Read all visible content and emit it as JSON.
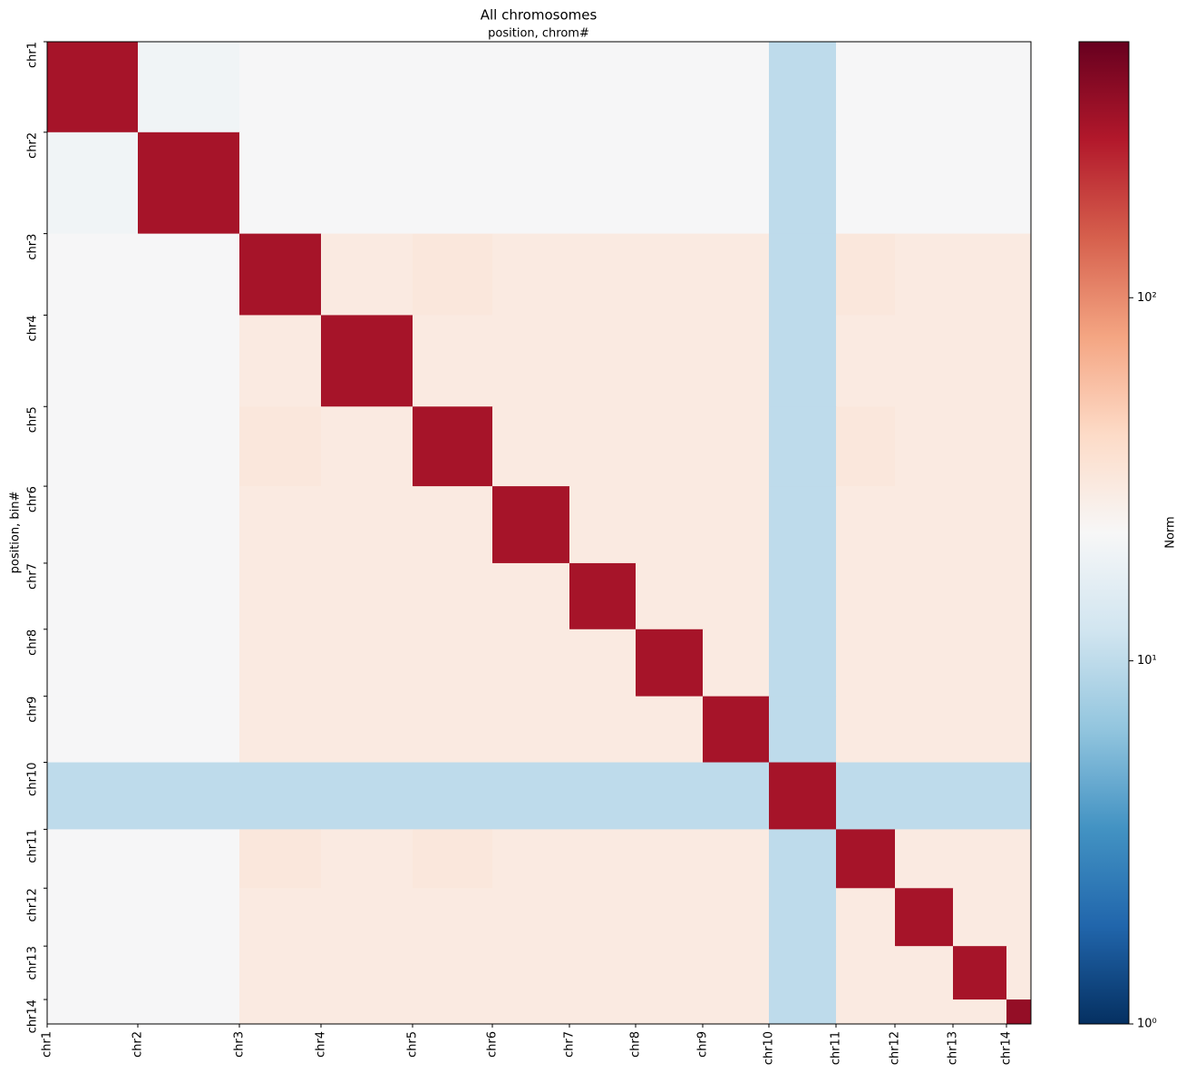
{
  "chart_data": {
    "type": "heatmap",
    "title": "All chromosomes",
    "xlabel": "position, chrom#",
    "ylabel": "position, bin#",
    "colorbar_label": "Norm",
    "colormap": "RdBu_r",
    "log_color": true,
    "clim": [
      1,
      507
    ],
    "cticks": [
      {
        "value": 1,
        "label": "10⁰"
      },
      {
        "value": 10,
        "label": "10¹"
      },
      {
        "value": 100,
        "label": "10²"
      }
    ],
    "xlim": [
      0,
      1085
    ],
    "ylim": [
      1085,
      0
    ],
    "xticks": [
      {
        "value": 0,
        "label": "chr1"
      },
      {
        "value": 100,
        "label": "chr2"
      },
      {
        "value": 212,
        "label": "chr3"
      },
      {
        "value": 302,
        "label": "chr4"
      },
      {
        "value": 403,
        "label": "chr5"
      },
      {
        "value": 491,
        "label": "chr6"
      },
      {
        "value": 576,
        "label": "chr7"
      },
      {
        "value": 649,
        "label": "chr8"
      },
      {
        "value": 723,
        "label": "chr9"
      },
      {
        "value": 796,
        "label": "chr10"
      },
      {
        "value": 870,
        "label": "chr11"
      },
      {
        "value": 935,
        "label": "chr12"
      },
      {
        "value": 999,
        "label": "chr13"
      },
      {
        "value": 1058,
        "label": "chr14"
      }
    ],
    "yticks": [
      {
        "value": 0,
        "label": "chr1"
      },
      {
        "value": 100,
        "label": "chr2"
      },
      {
        "value": 212,
        "label": "chr3"
      },
      {
        "value": 302,
        "label": "chr4"
      },
      {
        "value": 403,
        "label": "chr5"
      },
      {
        "value": 491,
        "label": "chr6"
      },
      {
        "value": 576,
        "label": "chr7"
      },
      {
        "value": 649,
        "label": "chr8"
      },
      {
        "value": 723,
        "label": "chr9"
      },
      {
        "value": 796,
        "label": "chr10"
      },
      {
        "value": 870,
        "label": "chr11"
      },
      {
        "value": 935,
        "label": "chr12"
      },
      {
        "value": 999,
        "label": "chr13"
      },
      {
        "value": 1058,
        "label": "chr14"
      }
    ],
    "matrix": [
      [
        300,
        20,
        22,
        22,
        22,
        22,
        22,
        22,
        22,
        10,
        22,
        22,
        22,
        22
      ],
      [
        20,
        300,
        22,
        22,
        22,
        22,
        22,
        22,
        22,
        10,
        22,
        22,
        22,
        22
      ],
      [
        22,
        22,
        300,
        30,
        32,
        30,
        30,
        30,
        30,
        10,
        32,
        30,
        30,
        30
      ],
      [
        22,
        22,
        30,
        300,
        30,
        30,
        30,
        30,
        30,
        10,
        30,
        30,
        30,
        30
      ],
      [
        22,
        22,
        32,
        30,
        300,
        30,
        30,
        30,
        30,
        10,
        32,
        30,
        30,
        30
      ],
      [
        22,
        22,
        30,
        30,
        30,
        300,
        30,
        30,
        30,
        10,
        30,
        30,
        30,
        30
      ],
      [
        22,
        22,
        30,
        30,
        30,
        30,
        300,
        30,
        30,
        10,
        30,
        30,
        30,
        30
      ],
      [
        22,
        22,
        30,
        30,
        30,
        30,
        30,
        300,
        30,
        10,
        30,
        30,
        30,
        30
      ],
      [
        22,
        22,
        30,
        30,
        30,
        30,
        30,
        30,
        300,
        10,
        30,
        30,
        30,
        30
      ],
      [
        10,
        10,
        10,
        10,
        10,
        10,
        10,
        10,
        10,
        300,
        10,
        10,
        10,
        10
      ],
      [
        22,
        22,
        32,
        30,
        32,
        30,
        30,
        30,
        30,
        10,
        300,
        30,
        30,
        30
      ],
      [
        22,
        22,
        30,
        30,
        30,
        30,
        30,
        30,
        30,
        10,
        30,
        300,
        30,
        30
      ],
      [
        22,
        22,
        30,
        30,
        30,
        30,
        30,
        30,
        30,
        10,
        30,
        30,
        300,
        30
      ],
      [
        22,
        22,
        30,
        30,
        30,
        30,
        30,
        30,
        30,
        10,
        30,
        30,
        30,
        350
      ]
    ]
  }
}
